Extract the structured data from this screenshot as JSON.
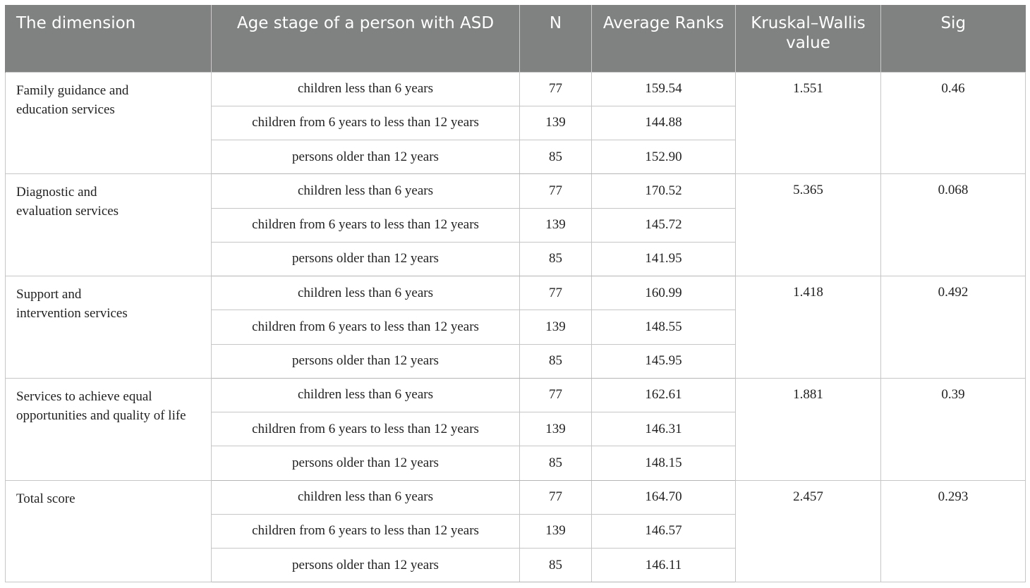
{
  "headers": {
    "dimension": "The dimension",
    "age_stage": "Age stage of a person with ASD",
    "n": "N",
    "average_ranks": "Average Ranks",
    "kw_value": "Kruskal–Wallis value",
    "sig": "Sig"
  },
  "groups": [
    {
      "dimension_line1": "Family guidance and",
      "dimension_line2": "education services",
      "kw": "1.551",
      "sig": "0.46",
      "rows": [
        {
          "age": "children less than 6 years",
          "n": "77",
          "rank": "159.54"
        },
        {
          "age": "children from 6 years to less than 12 years",
          "n": "139",
          "rank": "144.88"
        },
        {
          "age": "persons older than 12 years",
          "n": "85",
          "rank": "152.90"
        }
      ]
    },
    {
      "dimension_line1": "Diagnostic and",
      "dimension_line2": "evaluation services",
      "kw": "5.365",
      "sig": "0.068",
      "rows": [
        {
          "age": "children less than 6 years",
          "n": "77",
          "rank": "170.52"
        },
        {
          "age": "children from 6 years to less than 12 years",
          "n": "139",
          "rank": "145.72"
        },
        {
          "age": "persons older than 12 years",
          "n": "85",
          "rank": "141.95"
        }
      ]
    },
    {
      "dimension_line1": "Support and",
      "dimension_line2": "intervention services",
      "kw": "1.418",
      "sig": "0.492",
      "rows": [
        {
          "age": "children less than 6 years",
          "n": "77",
          "rank": "160.99"
        },
        {
          "age": "children from 6 years to less than 12 years",
          "n": "139",
          "rank": "148.55"
        },
        {
          "age": "persons older than 12 years",
          "n": "85",
          "rank": "145.95"
        }
      ]
    },
    {
      "dimension_line1": "Services to achieve equal",
      "dimension_line2": "opportunities and quality of life",
      "kw": "1.881",
      "sig": "0.39",
      "rows": [
        {
          "age": "children less than 6 years",
          "n": "77",
          "rank": "162.61"
        },
        {
          "age": "children from 6 years to less than 12 years",
          "n": "139",
          "rank": "146.31"
        },
        {
          "age": "persons older than 12 years",
          "n": "85",
          "rank": "148.15"
        }
      ]
    },
    {
      "dimension_line1": "Total score",
      "dimension_line2": "",
      "kw": "2.457",
      "sig": "0.293",
      "rows": [
        {
          "age": "children less than 6 years",
          "n": "77",
          "rank": "164.70"
        },
        {
          "age": "children from 6 years to less than 12 years",
          "n": "139",
          "rank": "146.57"
        },
        {
          "age": "persons older than 12 years",
          "n": "85",
          "rank": "146.11"
        }
      ]
    }
  ]
}
